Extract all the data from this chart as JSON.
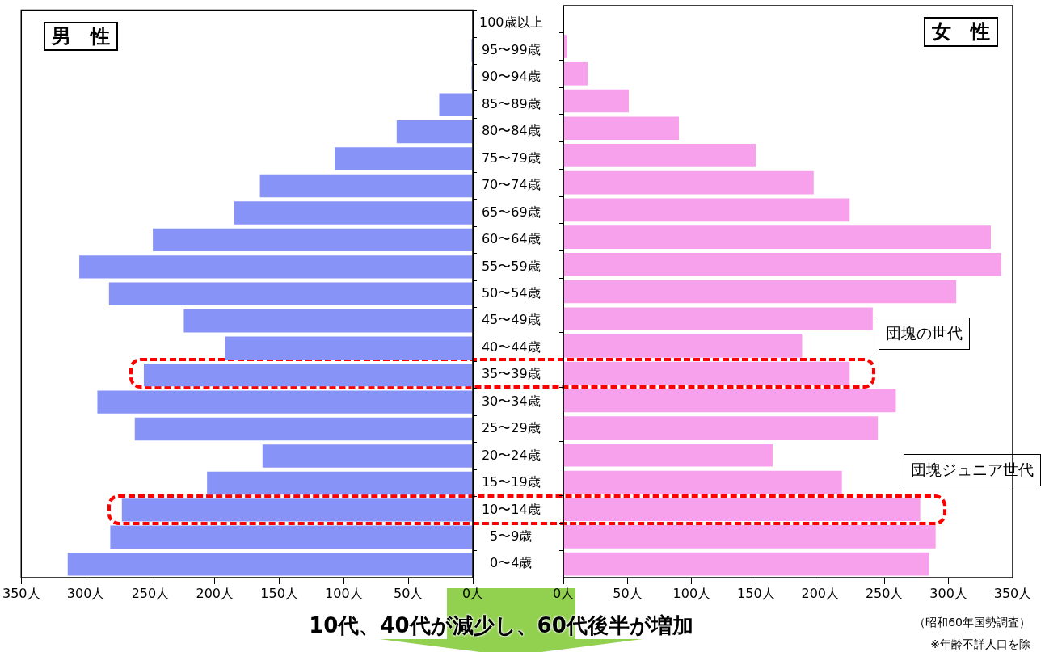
{
  "chart_data": [
    {
      "type": "bar",
      "orientation": "horizontal",
      "title": "男　性",
      "categories": [
        "100歳以上",
        "95〜99歳",
        "90〜94歳",
        "85〜89歳",
        "80〜84歳",
        "75〜79歳",
        "70〜74歳",
        "65〜69歳",
        "60〜64歳",
        "55〜59歳",
        "50〜54歳",
        "45〜49歳",
        "40〜44歳",
        "35〜39歳",
        "30〜34歳",
        "25〜29歳",
        "20〜24歳",
        "15〜19歳",
        "10〜14歳",
        "5〜9歳",
        "0〜4歳"
      ],
      "series": [
        {
          "color": "#8893f7",
          "values": [
            0,
            1,
            1,
            26,
            59,
            107,
            165,
            185,
            248,
            305,
            282,
            224,
            192,
            255,
            291,
            262,
            163,
            206,
            272,
            281,
            314
          ]
        }
      ],
      "xlim": [
        350,
        0
      ],
      "xticks": [
        {
          "value": 350,
          "label": "350人"
        },
        {
          "value": 300,
          "label": "300人"
        },
        {
          "value": 250,
          "label": "250人"
        },
        {
          "value": 200,
          "label": "200人"
        },
        {
          "value": 150,
          "label": "150人"
        },
        {
          "value": 100,
          "label": "100人"
        },
        {
          "value": 50,
          "label": "50人"
        },
        {
          "value": 0,
          "label": "0人"
        }
      ],
      "grid": false
    },
    {
      "type": "bar",
      "orientation": "horizontal",
      "title": "女　性",
      "categories": [
        null,
        null,
        null,
        null,
        null,
        null,
        null,
        null,
        null,
        null,
        null,
        null,
        null,
        null,
        null,
        null,
        null,
        null,
        null,
        null,
        null
      ],
      "series": [
        {
          "color": "#f7a1ec",
          "values": [
            0,
            3,
            19,
            51,
            90,
            150,
            195,
            223,
            333,
            341,
            306,
            241,
            186,
            223,
            259,
            245,
            163,
            217,
            278,
            290,
            285
          ]
        }
      ],
      "xlim": [
        0,
        350
      ],
      "xticks": [
        {
          "value": 0,
          "label": "0人"
        },
        {
          "value": 50,
          "label": "50人"
        },
        {
          "value": 100,
          "label": "100人"
        },
        {
          "value": 150,
          "label": "150人"
        },
        {
          "value": 200,
          "label": "200人"
        },
        {
          "value": 250,
          "label": "250人"
        },
        {
          "value": 300,
          "label": "300人"
        },
        {
          "value": 350,
          "label": "350人"
        }
      ],
      "grid": false,
      "tick_labels": "x",
      "annotations": [
        "団塊の世代",
        "団塊ジュニア世代",
        "10代、40代が減少し、60代後半が増加",
        "（昭和60年国勢調査）",
        "※年齢不詳人口を除"
      ]
    }
  ]
}
